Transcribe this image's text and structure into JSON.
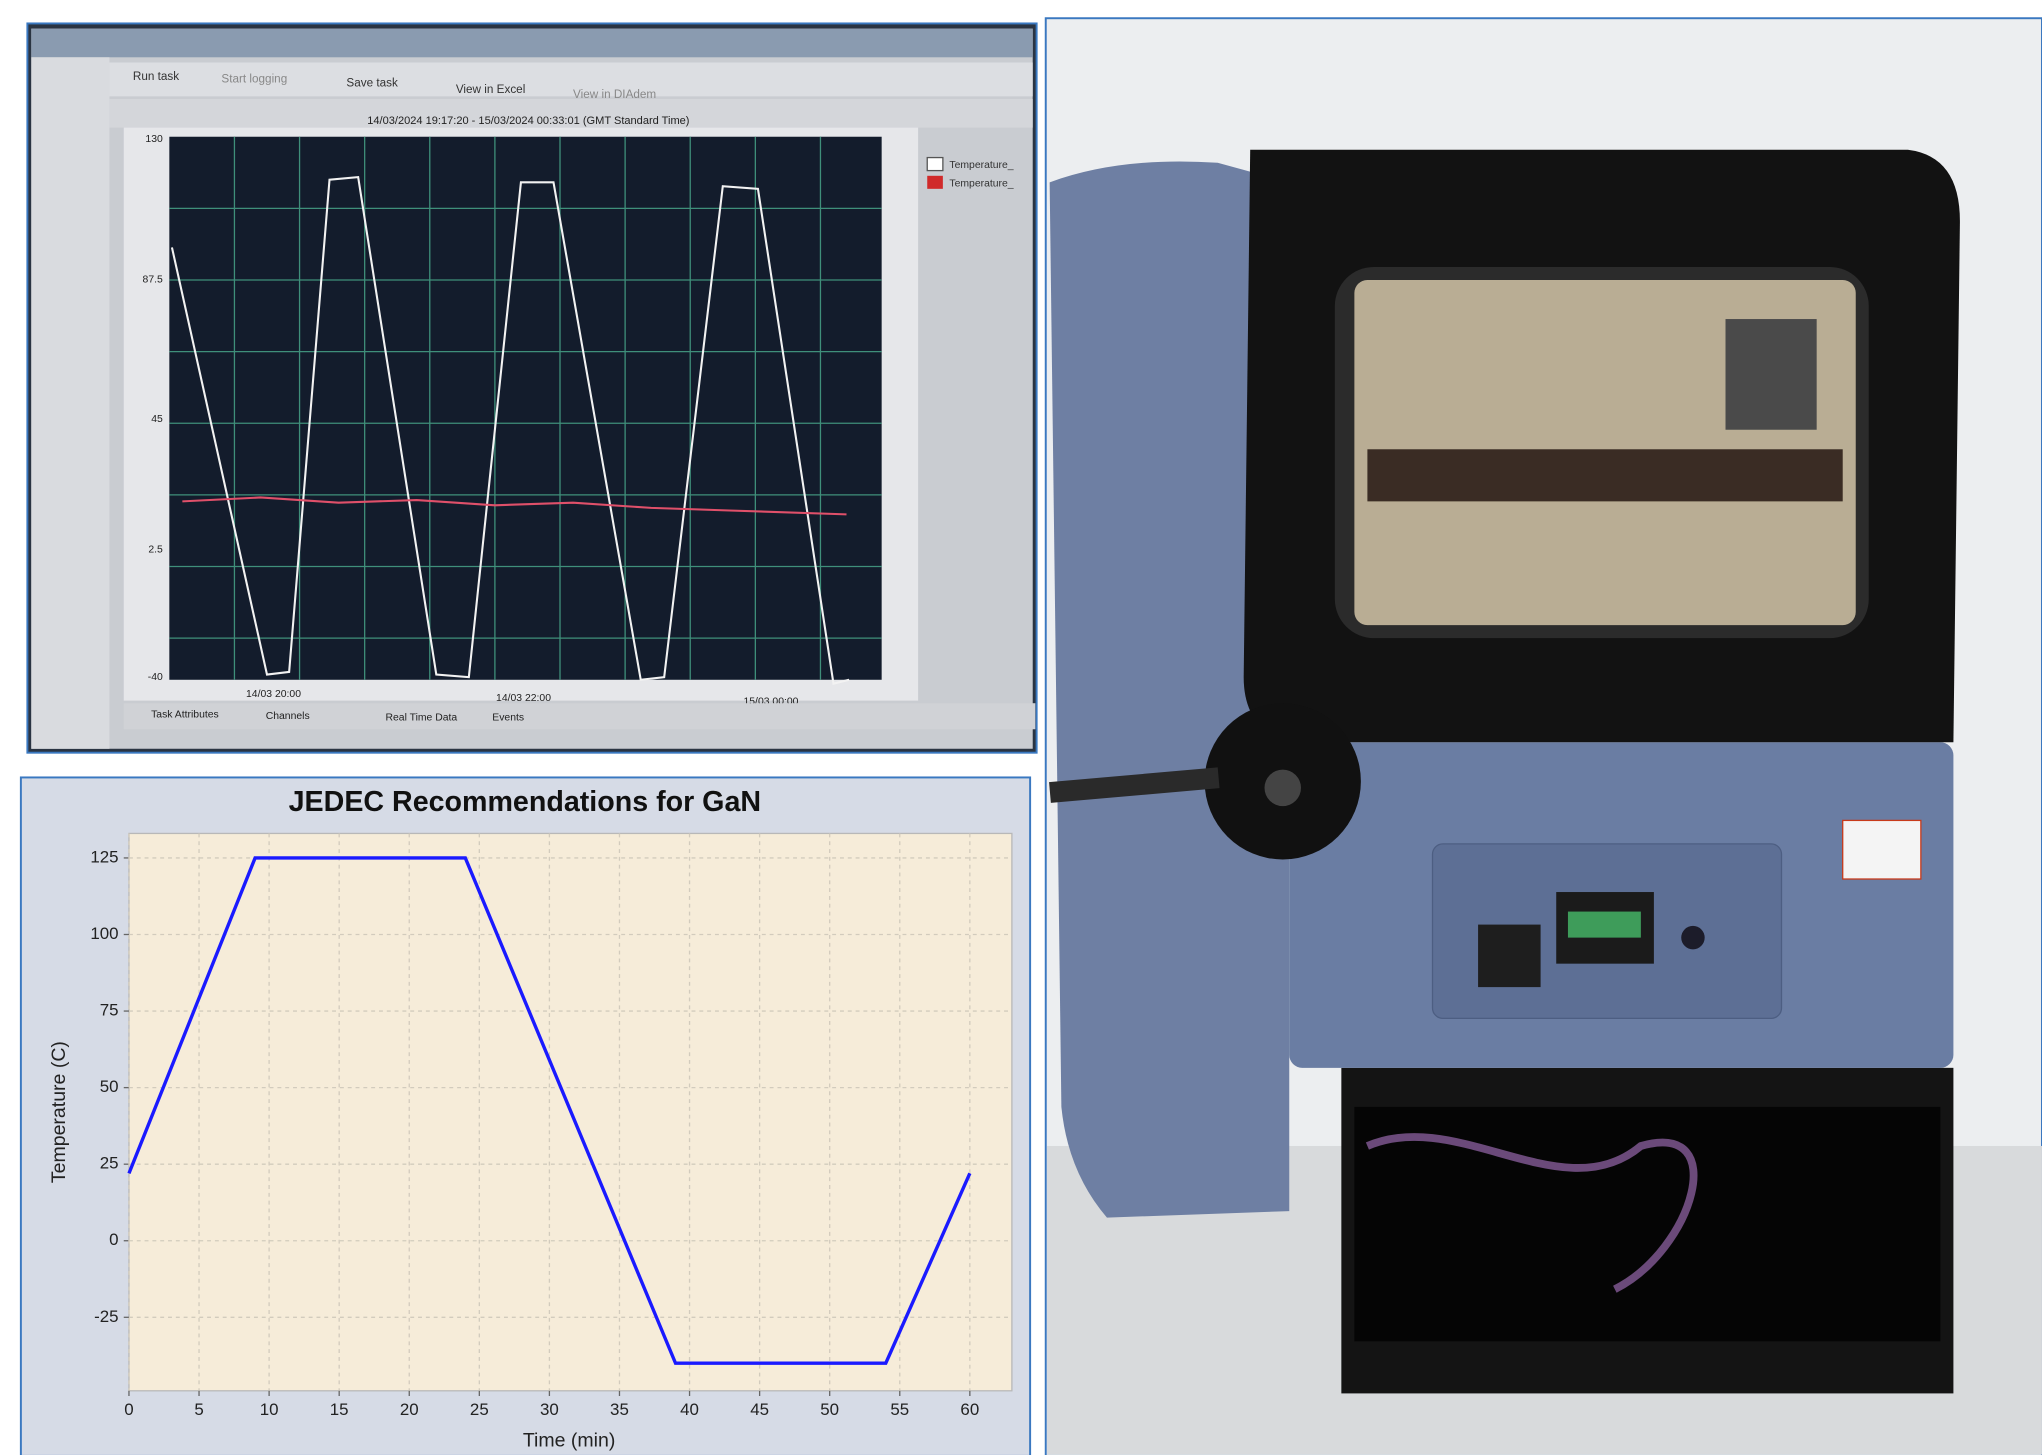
{
  "chart_data": {
    "type": "line",
    "title": "JEDEC Recommendations for GaN",
    "x_label": "Time (min)",
    "y_label": "Temperature (C)",
    "x": [
      0,
      9,
      24,
      39,
      54,
      60
    ],
    "values": [
      22,
      125,
      125,
      -40,
      -40,
      22
    ],
    "color": "#1a1aff",
    "xlim": [
      0,
      63
    ],
    "ylim": [
      -49,
      133
    ],
    "xticks": [
      0,
      5,
      10,
      15,
      20,
      25,
      30,
      35,
      40,
      45,
      50,
      55,
      60
    ],
    "yticks": [
      -25,
      0,
      25,
      50,
      75,
      100,
      125
    ],
    "grid": true
  },
  "screen_photo": {
    "toolbar": [
      "Run task",
      "Start logging",
      "Save task",
      "View in Excel",
      "View in DIAdem"
    ],
    "time_range": "14/03/2024 19:17:20 - 15/03/2024 00:33:01 (GMT Standard Time)",
    "y_ticks": [
      130,
      87.5,
      45,
      2.5,
      -40
    ],
    "x_ticks": [
      "14/03 20:00",
      "14/03 22:00",
      "15/03 00:00"
    ],
    "legend": [
      "Temperature_",
      "Temperature_"
    ],
    "tabs": [
      "Task Attributes",
      "Channels",
      "Real Time Data",
      "Events"
    ]
  }
}
